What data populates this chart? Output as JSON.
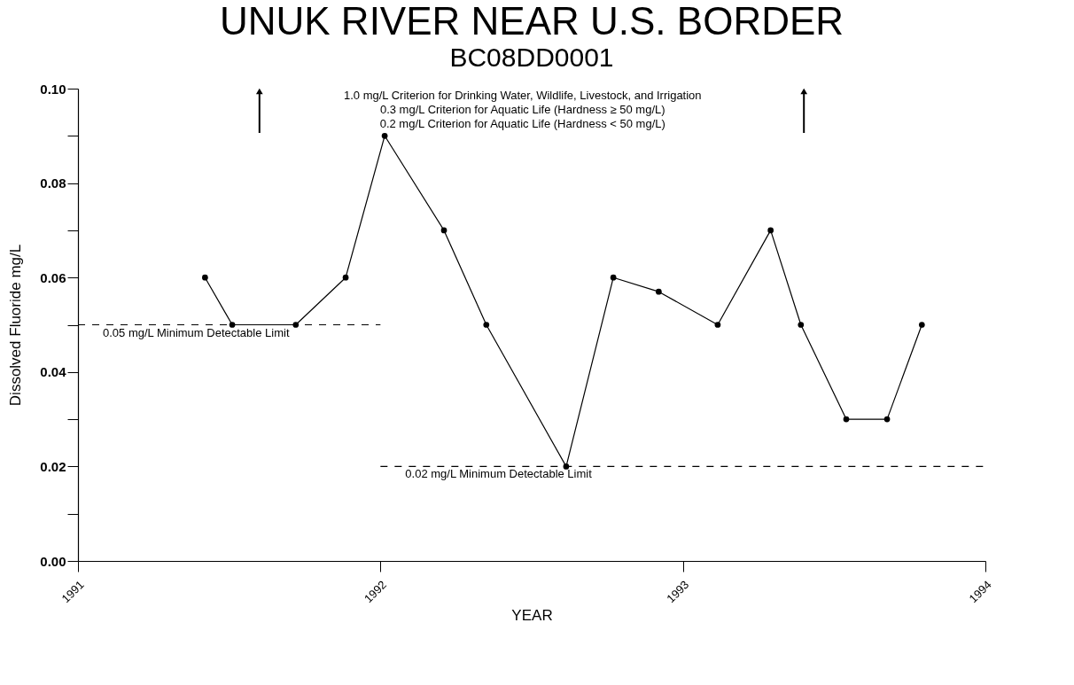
{
  "chart_data": {
    "type": "line",
    "title": "UNUK RIVER NEAR U.S. BORDER",
    "subtitle": "BC08DD0001",
    "xlabel": "YEAR",
    "ylabel": "Dissolved Fluoride mg/L",
    "xlim": [
      1991,
      1994
    ],
    "xticks": [
      1991,
      1992,
      1993,
      1994
    ],
    "ylim": [
      0,
      0.1
    ],
    "yticks": [
      {
        "value": 0,
        "label": "0.00"
      },
      {
        "value": 0.01,
        "label": null
      },
      {
        "value": 0.02,
        "label": "0.02"
      },
      {
        "value": 0.03,
        "label": null
      },
      {
        "value": 0.04,
        "label": "0.04"
      },
      {
        "value": 0.05,
        "label": null
      },
      {
        "value": 0.06,
        "label": "0.06"
      },
      {
        "value": 0.07,
        "label": null
      },
      {
        "value": 0.08,
        "label": "0.08"
      },
      {
        "value": 0.09,
        "label": null
      },
      {
        "value": 0.1,
        "label": "0.10"
      }
    ],
    "grid": false,
    "marker": "circle",
    "line_style": "solid",
    "series": [
      {
        "color": "#000000",
        "x": [
          1991.42,
          1991.51,
          1991.72,
          1991.885,
          1992.014,
          1992.21,
          1992.35,
          1992.614,
          1992.77,
          1992.92,
          1993.115,
          1993.29,
          1993.39,
          1993.54,
          1993.675,
          1993.79
        ],
        "values": [
          0.06,
          0.05,
          0.05,
          0.06,
          0.09,
          0.07,
          0.05,
          0.02,
          0.06,
          0.057,
          0.05,
          0.07,
          0.05,
          0.03,
          0.03,
          0.05
        ]
      },
      {
        "color": "#000000",
        "line_style": "dashed",
        "marker": "none",
        "x": [
          1991,
          1992
        ],
        "values": [
          0.05,
          0.05
        ]
      },
      {
        "color": "#000000",
        "line_style": "dashed",
        "marker": "none",
        "x": [
          1992,
          1994
        ],
        "values": [
          0.02,
          0.02
        ]
      }
    ],
    "annotations": [
      {
        "text": "0.05 mg/L Minimum Detectable Limit",
        "x": 1991,
        "y": 0.05
      },
      {
        "text": "0.02 mg/L Minimum Detectable Limit",
        "x": 1992,
        "y": 0.02
      },
      "1.0 mg/L Criterion for Drinking Water, Wildlife, Livestock, and Irrigation",
      "0.3 mg/L Criterion for Aquatic Life (Hardness ≥ 50 mg/L)",
      "0.2 mg/L Criterion for Aquatic Life (Hardness < 50 mg/L)"
    ]
  }
}
